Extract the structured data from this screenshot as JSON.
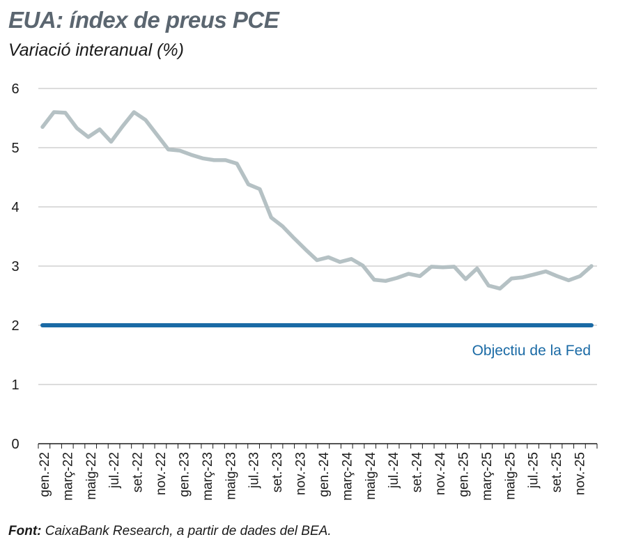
{
  "chart_data": {
    "type": "line",
    "title": "EUA: índex de preus PCE",
    "subtitle": "Variació interanual (%)",
    "source_label": "Font:",
    "source_text": "CaixaBank Research, a partir de dades del BEA.",
    "ylim": [
      0,
      6
    ],
    "yticks": [
      "0",
      "1",
      "2",
      "3",
      "4",
      "5",
      "6"
    ],
    "grid": true,
    "xtick_labels": [
      "gen.-22",
      "març-22",
      "maig-22",
      "jul.-22",
      "set.-22",
      "nov.-22",
      "gen.-23",
      "març-23",
      "maig-23",
      "jul.-23",
      "set.-23",
      "nov.-23",
      "gen.-24",
      "març-24",
      "maig-24",
      "jul.-24",
      "set.-24",
      "nov.-24",
      "gen.-25",
      "març-25",
      "maig-25",
      "jul.-25",
      "set.-25",
      "nov.-25"
    ],
    "series": [
      {
        "color": "#b5c1c4",
        "values": [
          5.35,
          5.6,
          5.59,
          5.33,
          5.18,
          5.31,
          5.1,
          5.36,
          5.6,
          5.47,
          5.22,
          4.97,
          4.95,
          4.88,
          4.82,
          4.79,
          4.79,
          4.73,
          4.38,
          4.3,
          3.82,
          3.67,
          3.47,
          3.28,
          3.1,
          3.15,
          3.07,
          3.12,
          3.01,
          2.77,
          2.75,
          2.8,
          2.87,
          2.83,
          2.99,
          2.98,
          2.99,
          2.78,
          2.96,
          2.67,
          2.62,
          2.79,
          2.81,
          2.86,
          2.91,
          2.83,
          2.76,
          2.83,
          3.0
        ]
      },
      {
        "color": "#1a6aa5",
        "values": [
          2,
          2
        ],
        "annotation": "Objectiu de la Fed"
      }
    ]
  }
}
